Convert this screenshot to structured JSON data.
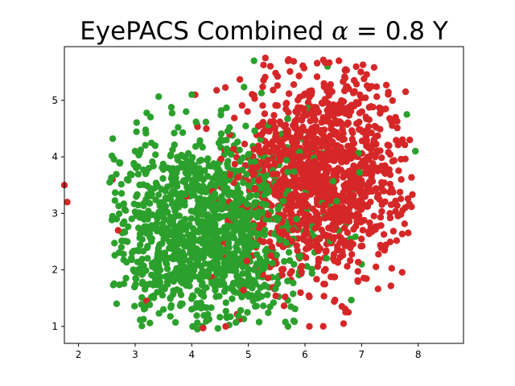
{
  "chart_data": {
    "type": "scatter",
    "title": {
      "prefix": "EyePACS Combined ",
      "alpha_symbol": "α",
      "equals": " = 0.8 Y"
    },
    "xlabel": "",
    "ylabel": "",
    "xlim": [
      1.75,
      8.8
    ],
    "ylim": [
      0.7,
      5.95
    ],
    "x_ticks": [
      2,
      3,
      4,
      5,
      6,
      7,
      8
    ],
    "y_ticks": [
      1,
      2,
      3,
      4,
      5
    ],
    "grid": false,
    "legend": "none",
    "series": [
      {
        "color": "#d62728",
        "point_count": 1300,
        "cluster": {
          "center": [
            6.3,
            3.7
          ],
          "spread": [
            0.75,
            0.9
          ],
          "x_range": [
            1.75,
            7.9
          ],
          "y_range": [
            0.95,
            5.8
          ]
        },
        "sample_points": [
          [
            7.85,
            4.3
          ],
          [
            7.6,
            4.7
          ],
          [
            6.6,
            5.7
          ],
          [
            5.7,
            5.7
          ],
          [
            5.3,
            5.75
          ],
          [
            4.2,
            0.97
          ],
          [
            1.8,
            3.2
          ],
          [
            1.75,
            3.5
          ],
          [
            2.6,
            3.6
          ],
          [
            2.7,
            2.7
          ],
          [
            3.2,
            1.45
          ],
          [
            4.6,
            1.0
          ],
          [
            7.5,
            3.0
          ],
          [
            7.7,
            3.6
          ],
          [
            6.5,
            2.2
          ]
        ]
      },
      {
        "color": "#2ca02c",
        "point_count": 1300,
        "cluster": {
          "center": [
            4.3,
            2.7
          ],
          "spread": [
            0.85,
            0.85
          ],
          "x_range": [
            2.55,
            7.95
          ],
          "y_range": [
            0.95,
            5.7
          ]
        },
        "sample_points": [
          [
            2.55,
            3.55
          ],
          [
            4.1,
            0.95
          ],
          [
            5.1,
            5.7
          ],
          [
            6.4,
            5.6
          ],
          [
            7.95,
            4.1
          ],
          [
            7.8,
            4.75
          ],
          [
            7.0,
            2.1
          ],
          [
            6.8,
            2.55
          ],
          [
            5.8,
            1.1
          ],
          [
            3.0,
            4.1
          ],
          [
            2.6,
            2.95
          ],
          [
            3.5,
            1.3
          ],
          [
            5.7,
            1.0
          ],
          [
            4.0,
            5.1
          ],
          [
            3.9,
            4.8
          ]
        ]
      }
    ]
  }
}
